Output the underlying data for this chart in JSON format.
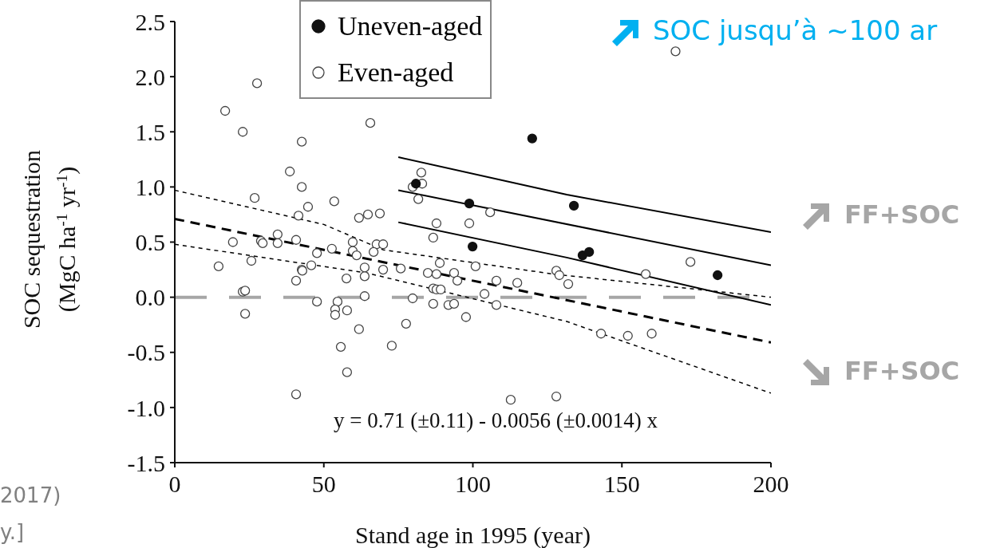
{
  "chart_data": {
    "type": "scatter",
    "xlabel": "Stand age in 1995 (year)",
    "ylabel": "SOC sequestration\n(MgC ha$^{-1}$ yr$^{-1}$)",
    "xlim": [
      0,
      200
    ],
    "xticks": [
      0,
      50,
      100,
      150,
      200
    ],
    "ylim": [
      -1.5,
      2.5
    ],
    "yticks": [
      {
        "value": -1.5,
        "label": "-1.5"
      },
      {
        "value": -1,
        "label": "-1.0"
      },
      {
        "value": -0.5,
        "label": "-0.5"
      },
      {
        "value": 0,
        "label": "0.0"
      },
      {
        "value": 0.5,
        "label": "0.5"
      },
      {
        "value": 1,
        "label": "1.0"
      },
      {
        "value": 1.5,
        "label": "1.5"
      },
      {
        "value": 2,
        "label": "2.0"
      },
      {
        "value": 2.5,
        "label": "2.5"
      }
    ],
    "legend": "top left",
    "marker": "circle",
    "grid": false,
    "series": [
      {
        "name": "Uneven-aged",
        "type": "scatter",
        "color": "#111111",
        "x": [
          80.9,
          98.8,
          99.9,
          119.9,
          133.9,
          136.8,
          139.0,
          182.1
        ],
        "values": [
          1.03,
          0.85,
          0.46,
          1.44,
          0.83,
          0.38,
          0.41,
          0.2
        ]
      },
      {
        "name": "Even-aged",
        "type": "scatter",
        "color": "#444444",
        "x": [
          14.7,
          16.9,
          27.6,
          22.8,
          26.8,
          19.5,
          28.9,
          29.5,
          34.5,
          34.5,
          38.6,
          42.6,
          42.6,
          44.7,
          41.5,
          53.5,
          40.7,
          52.7,
          47.7,
          59.7,
          59.7,
          61,
          61.8,
          64.8,
          65.6,
          25.7,
          40.7,
          42.6,
          42.8,
          45.8,
          57.6,
          63.7,
          63.7,
          22.8,
          23.6,
          23.6,
          47.7,
          54.6,
          53.8,
          53.8,
          57.8,
          63.7,
          61.8,
          55.7,
          57.8,
          40.7,
          82.7,
          79.8,
          83,
          81.7,
          105.8,
          87.8,
          98.8,
          86.7,
          68.8,
          67.7,
          69.9,
          66.7,
          69.9,
          75.8,
          88.9,
          84.9,
          87.8,
          93.7,
          94.8,
          100.9,
          107.9,
          114.9,
          103.9,
          86.7,
          87.8,
          89.2,
          79.8,
          86.7,
          91.8,
          93.7,
          107.9,
          97.7,
          77.6,
          72.8,
          112.7,
          128,
          128,
          129,
          132,
          173,
          158,
          143,
          152,
          160,
          168
        ],
        "values": [
          0.28,
          1.69,
          1.94,
          1.5,
          0.9,
          0.5,
          0.51,
          0.49,
          0.57,
          0.49,
          1.14,
          1.41,
          1.0,
          0.82,
          0.74,
          0.87,
          0.52,
          0.44,
          0.4,
          0.5,
          0.42,
          0.38,
          0.72,
          0.75,
          1.58,
          0.33,
          0.15,
          0.25,
          0.24,
          0.29,
          0.17,
          0.27,
          0.19,
          0.05,
          0.06,
          -0.15,
          -0.04,
          -0.04,
          -0.11,
          -0.16,
          -0.12,
          0.01,
          -0.29,
          -0.45,
          -0.68,
          -0.88,
          1.13,
          1.0,
          1.03,
          0.89,
          0.77,
          0.67,
          0.67,
          0.54,
          0.76,
          0.48,
          0.48,
          0.41,
          0.25,
          0.26,
          0.31,
          0.22,
          0.21,
          0.22,
          0.15,
          0.28,
          0.15,
          0.13,
          0.03,
          0.08,
          0.07,
          0.07,
          -0.01,
          -0.06,
          -0.07,
          -0.06,
          -0.07,
          -0.18,
          -0.24,
          -0.44,
          -0.93,
          -0.9,
          0.24,
          0.2,
          0.12,
          0.32,
          0.21,
          -0.33,
          -0.35,
          -0.33,
          2.23
        ]
      },
      {
        "type": "line",
        "marker": "none",
        "color": "#000000",
        "line_style": "dashed",
        "x": [
          0,
          200
        ],
        "values": [
          0.71,
          -0.41
        ]
      },
      {
        "type": "line",
        "marker": "none",
        "color": "#000000",
        "line_style": "dotted",
        "x": [
          0,
          50,
          69.9,
          127,
          200
        ],
        "values": [
          0.97,
          0.66,
          0.43,
          0.21,
          0.0
        ]
      },
      {
        "type": "line",
        "marker": "none",
        "color": "#000000",
        "line_style": "dotted",
        "x": [
          0,
          64.5,
          131.5,
          200
        ],
        "values": [
          0.48,
          0.22,
          -0.22,
          -0.87
        ]
      },
      {
        "type": "line",
        "marker": "none",
        "color": "#000000",
        "line_style": "solid",
        "x": [
          75,
          200
        ],
        "values": [
          0.97,
          0.29
        ]
      },
      {
        "type": "line",
        "marker": "none",
        "color": "#000000",
        "line_style": "solid",
        "x": [
          75,
          131.5,
          200
        ],
        "values": [
          1.27,
          0.93,
          0.59
        ]
      },
      {
        "type": "line",
        "marker": "none",
        "color": "#000000",
        "line_style": "solid",
        "x": [
          75,
          131.5,
          200
        ],
        "values": [
          0.68,
          0.36,
          -0.07
        ]
      }
    ],
    "ref_lines": [
      {
        "axis": "y",
        "value": 0,
        "color": "#a6a6a6",
        "line_style": "dashed"
      }
    ],
    "annotations": [
      "y = 0.71 (±0.11) - 0.0056 (±0.0014) x",
      "SOC jusqu’à ~100 ar",
      "FF+SOC",
      "FF+SOC",
      "2017)",
      "y.]"
    ]
  }
}
